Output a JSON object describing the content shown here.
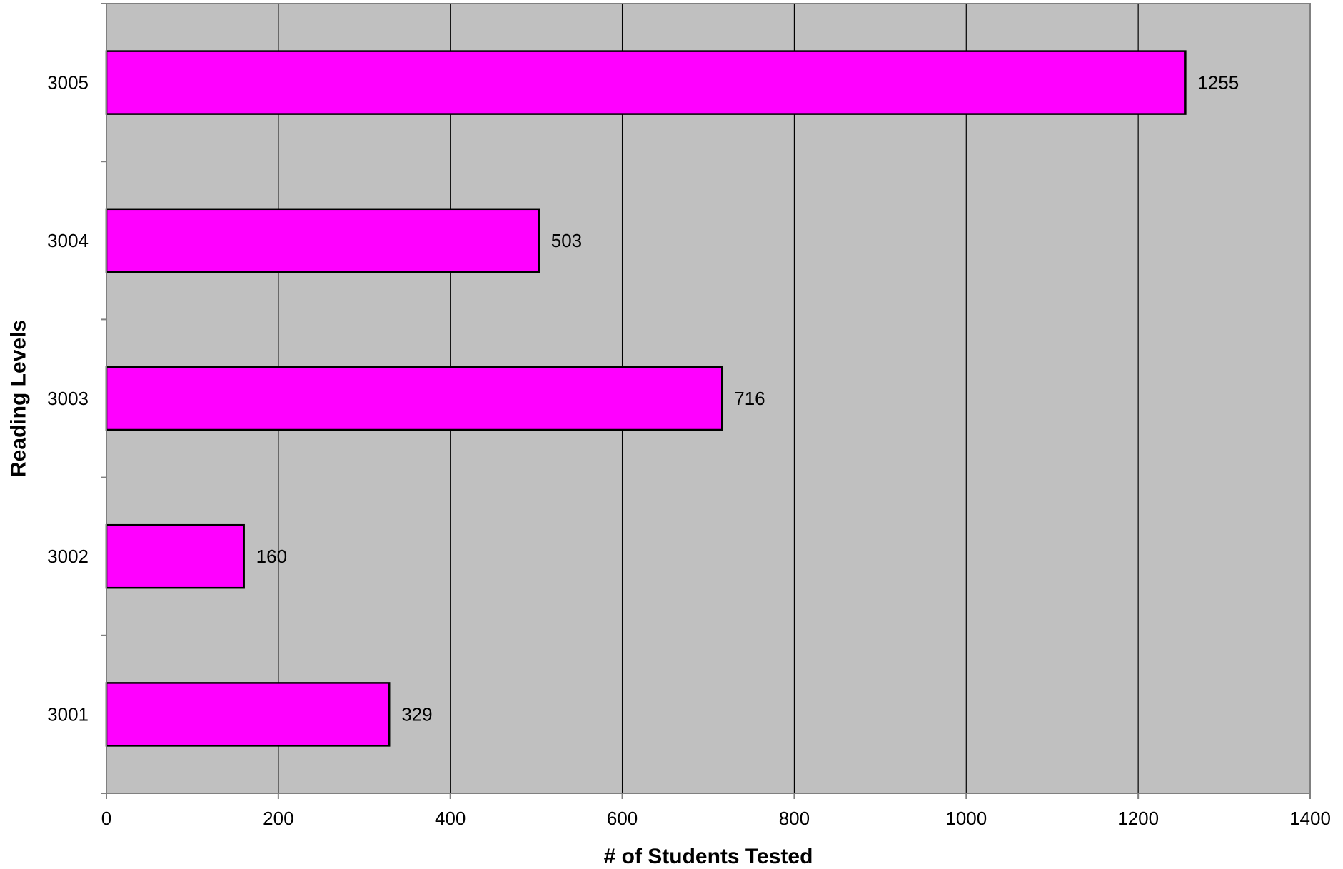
{
  "chart_data": {
    "type": "bar",
    "orientation": "horizontal",
    "title": "",
    "xlabel": "# of Students Tested",
    "ylabel": "Reading Levels",
    "categories": [
      "3001",
      "3002",
      "3003",
      "3004",
      "3005"
    ],
    "values": [
      329,
      160,
      716,
      503,
      1255
    ],
    "data_labels": [
      "329",
      "160",
      "716",
      "503",
      "1255"
    ],
    "xlim": [
      0,
      1400
    ],
    "x_ticks": [
      0,
      200,
      400,
      600,
      800,
      1000,
      1200,
      1400
    ],
    "x_tick_labels": [
      "0",
      "200",
      "400",
      "600",
      "800",
      "1000",
      "1200",
      "1400"
    ],
    "grid": "vertical",
    "legend": "none",
    "colors": {
      "bar_fill": "#ff00ff",
      "bar_stroke": "#000000",
      "plot_background": "#c0c0c0",
      "gridline": "#000000",
      "axis": "#808080"
    }
  }
}
